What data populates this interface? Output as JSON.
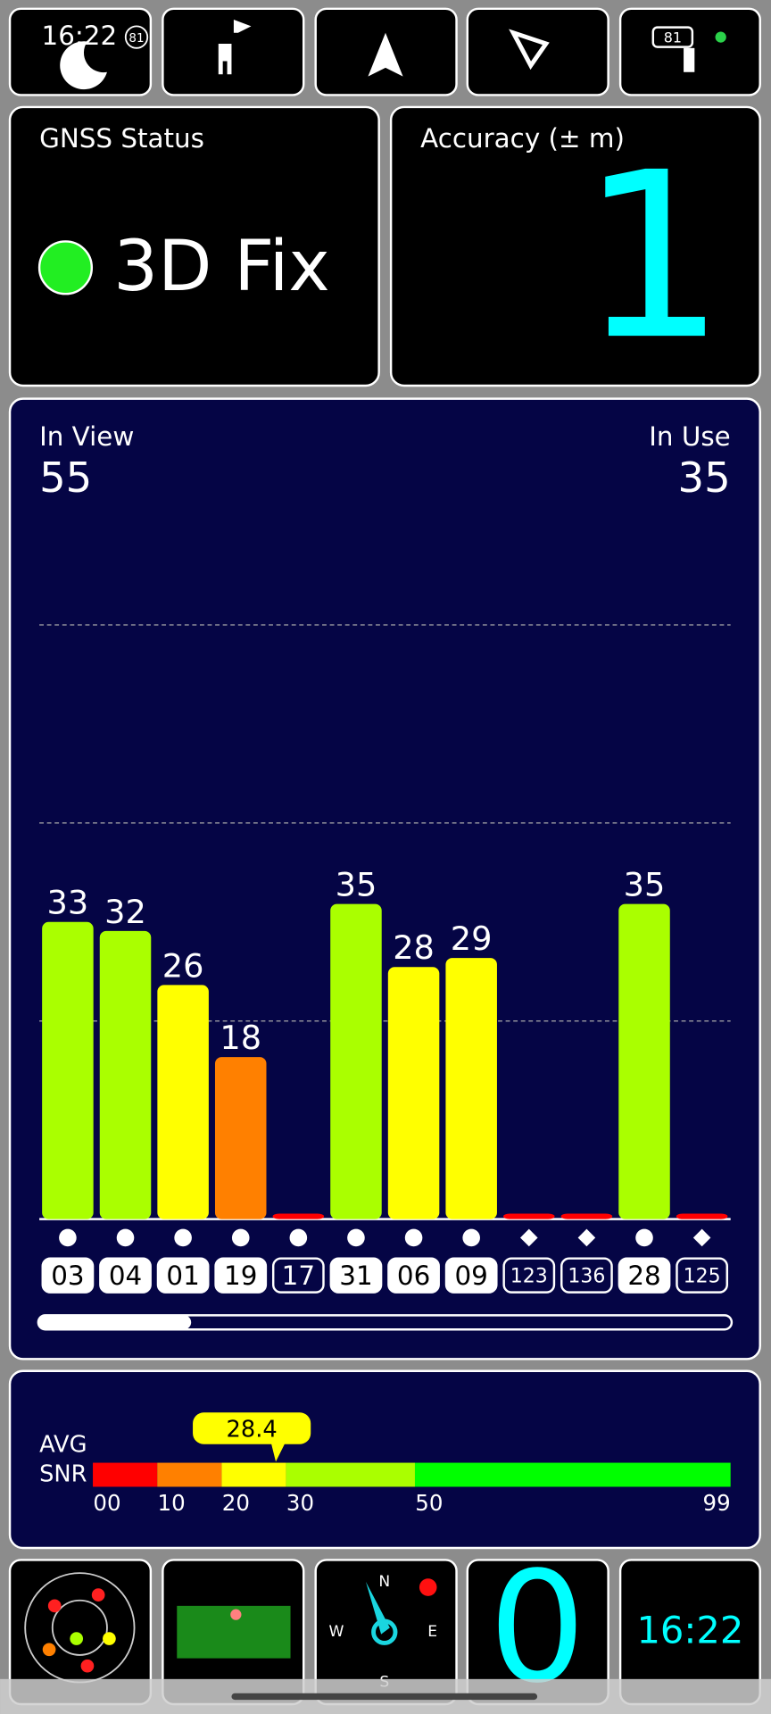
{
  "status_bar": {
    "time": "16:22",
    "badge": "81",
    "battery": "81"
  },
  "gnss_status": {
    "title": "GNSS Status",
    "fix": "3D Fix"
  },
  "accuracy": {
    "title": "Accuracy (± m)",
    "value": 1
  },
  "satellites": {
    "in_view_label": "In View",
    "in_view": 55,
    "in_use_label": "In Use",
    "in_use": 35,
    "chart_data": {
      "type": "bar",
      "categories": [
        "03",
        "04",
        "01",
        "19",
        "17",
        "31",
        "06",
        "09",
        "123",
        "136",
        "28",
        "125"
      ],
      "values": [
        33,
        32,
        26,
        18,
        0,
        35,
        28,
        29,
        0,
        0,
        35,
        0
      ],
      "markers": [
        "circle",
        "circle",
        "circle",
        "circle",
        "circle",
        "circle",
        "circle",
        "circle",
        "diamond",
        "diamond",
        "circle",
        "diamond"
      ],
      "used": [
        true,
        true,
        true,
        true,
        false,
        true,
        true,
        true,
        false,
        false,
        true,
        false
      ],
      "ylim": [
        0,
        66
      ],
      "grid": [
        22,
        44,
        66
      ]
    }
  },
  "avg_snr": {
    "label_1": "AVG",
    "label_2": "SNR",
    "value": 28.4,
    "ticks": [
      {
        "value": 0,
        "label": "00"
      },
      10,
      20,
      30,
      50,
      99
    ],
    "colors": [
      "#ff0000",
      "#ff8000",
      "#ffff00",
      "#aaff00",
      "#00ff00"
    ]
  },
  "bottom_tiles": {
    "count": 0,
    "clock": "16:22",
    "compass": {
      "n": "N",
      "e": "E",
      "s": "S",
      "w": "W"
    }
  }
}
